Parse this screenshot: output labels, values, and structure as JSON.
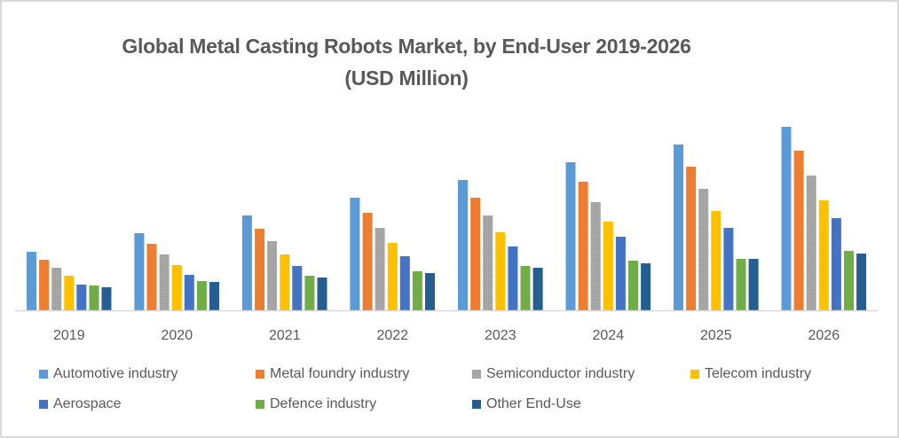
{
  "chart_data": {
    "type": "bar",
    "title": "Global Metal Casting Robots Market, by End-User 2019-2026",
    "subtitle": "(USD Million)",
    "xlabel": "",
    "ylabel": "USD Million",
    "ylim": [
      0,
      220
    ],
    "grid": false,
    "legend_position": "bottom",
    "categories": [
      "2019",
      "2020",
      "2021",
      "2022",
      "2023",
      "2024",
      "2025",
      "2026"
    ],
    "series": [
      {
        "name": "Automotive industry",
        "color": "#5B9BD5",
        "values": [
          66,
          87,
          107,
          127,
          147,
          167,
          187,
          207
        ]
      },
      {
        "name": "Metal foundry industry",
        "color": "#ED7D31",
        "values": [
          57,
          75,
          92,
          110,
          127,
          145,
          162,
          180
        ]
      },
      {
        "name": "Semiconductor industry",
        "color": "#A5A5A5",
        "values": [
          48,
          63,
          78,
          93,
          107,
          122,
          137,
          152
        ]
      },
      {
        "name": "Telecom industry",
        "color": "#FFC000",
        "values": [
          39,
          51,
          63,
          76,
          88,
          100,
          112,
          124
        ]
      },
      {
        "name": "Aerospace",
        "color": "#4472C4",
        "values": [
          29,
          40,
          50,
          61,
          72,
          83,
          93,
          104
        ]
      },
      {
        "name": "Defence industry",
        "color": "#70AD47",
        "values": [
          28,
          33,
          39,
          44,
          50,
          56,
          58,
          67
        ]
      },
      {
        "name": "Other End-Use",
        "color": "#255E91",
        "values": [
          26,
          32,
          37,
          42,
          48,
          53,
          58,
          64
        ]
      }
    ]
  }
}
